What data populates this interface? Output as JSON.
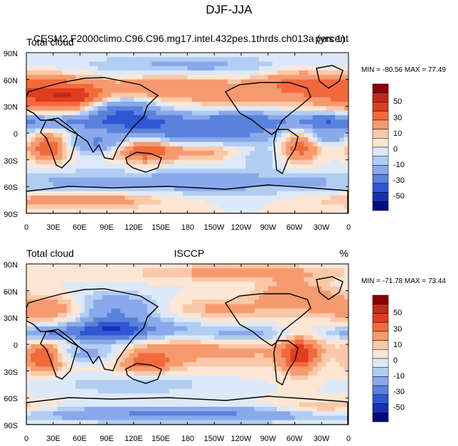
{
  "figure": {
    "title": "DJF-JJA"
  },
  "panels": [
    {
      "left_label": "Total cloud",
      "center_label": "CESM2.F2000climo.C96.C96.mg17.intel.432pes.1thrds.ch013a (yrs 1)",
      "right_label": "percent",
      "stats": {
        "min_label": "MIN = ",
        "min": "-80.56",
        "max_label": " MAX = ",
        "max": "77.49"
      }
    },
    {
      "left_label": "Total cloud",
      "center_label": "ISCCP",
      "right_label": "%",
      "stats": {
        "min_label": "MIN = ",
        "min": "-71.78",
        "max_label": " MAX = ",
        "max": "73.44"
      }
    }
  ],
  "axes": {
    "lat_ticks": [
      "90N",
      "60N",
      "30N",
      "0",
      "30S",
      "60S",
      "90S"
    ],
    "lon_ticks": [
      "0",
      "30E",
      "60E",
      "90E",
      "120E",
      "150E",
      "180",
      "150W",
      "120W",
      "90W",
      "60W",
      "30W",
      "0"
    ]
  },
  "colorbar": {
    "labels": [
      "50",
      "30",
      "10",
      "0",
      "-10",
      "-30",
      "-50"
    ],
    "colors": [
      "#8b0000",
      "#c02a1a",
      "#e03c1e",
      "#f26a3c",
      "#f59a6e",
      "#fac8a8",
      "#fde6d4",
      "#dde9f8",
      "#b2cdf2",
      "#8aa9ea",
      "#5a82dc",
      "#2f57d2",
      "#1a2fb6",
      "#000c7e"
    ]
  },
  "chart_data": [
    {
      "type": "heatmap",
      "title": "DJF-JJA",
      "subtitle": "CESM2.F2000climo.C96.C96.mg17.intel.432pes.1thrds.ch013a (yrs 1)",
      "variable": "Total cloud",
      "units": "percent",
      "xlabel": "",
      "ylabel": "",
      "x_range": [
        0,
        360
      ],
      "y_range": [
        -90,
        90
      ],
      "stats": {
        "min": -80.56,
        "max": 77.49
      },
      "features": [
        {
          "lon": 20,
          "lat": 45,
          "amp": 30,
          "sx": 45,
          "sy": 14
        },
        {
          "lon": 60,
          "lat": 38,
          "amp": 22,
          "sx": 28,
          "sy": 10
        },
        {
          "lon": 155,
          "lat": 50,
          "amp": 20,
          "sx": 40,
          "sy": 10
        },
        {
          "lon": 230,
          "lat": 45,
          "amp": 15,
          "sx": 30,
          "sy": 10
        },
        {
          "lon": 300,
          "lat": 55,
          "amp": 20,
          "sx": 30,
          "sy": 12
        },
        {
          "lon": 100,
          "lat": 28,
          "amp": -30,
          "sx": 30,
          "sy": 10
        },
        {
          "lon": 40,
          "lat": 12,
          "amp": -18,
          "sx": 40,
          "sy": 6
        },
        {
          "lon": 130,
          "lat": 10,
          "amp": -25,
          "sx": 40,
          "sy": 9
        },
        {
          "lon": 245,
          "lat": 12,
          "amp": -28,
          "sx": 55,
          "sy": 8
        },
        {
          "lon": 335,
          "lat": 12,
          "amp": -20,
          "sx": 25,
          "sy": 8
        },
        {
          "lon": 25,
          "lat": -15,
          "amp": 32,
          "sx": 16,
          "sy": 11
        },
        {
          "lon": 130,
          "lat": -18,
          "amp": 30,
          "sx": 22,
          "sy": 10
        },
        {
          "lon": 305,
          "lat": -12,
          "amp": 30,
          "sx": 15,
          "sy": 14
        },
        {
          "lon": 200,
          "lat": -20,
          "amp": 14,
          "sx": 40,
          "sy": 8
        },
        {
          "lon": 80,
          "lat": -12,
          "amp": -20,
          "sx": 30,
          "sy": 8
        },
        {
          "lon": 200,
          "lat": -5,
          "amp": -22,
          "sx": 60,
          "sy": 7
        },
        {
          "lon": 330,
          "lat": -5,
          "amp": -14,
          "sx": 25,
          "sy": 6
        },
        {
          "lon": 260,
          "lat": -25,
          "amp": -12,
          "sx": 25,
          "sy": 8
        },
        {
          "lon": 180,
          "lat": -55,
          "amp": -14,
          "sx": 200,
          "sy": 10
        },
        {
          "lon": 60,
          "lat": -75,
          "amp": 20,
          "sx": 60,
          "sy": 6
        },
        {
          "lon": 180,
          "lat": 75,
          "amp": -12,
          "sx": 100,
          "sy": 8
        }
      ]
    },
    {
      "type": "heatmap",
      "title": "ISCCP",
      "variable": "Total cloud",
      "units": "%",
      "xlabel": "",
      "ylabel": "",
      "x_range": [
        0,
        360
      ],
      "y_range": [
        -90,
        90
      ],
      "stats": {
        "min": -71.78,
        "max": 73.44
      },
      "features": [
        {
          "lon": 30,
          "lat": 40,
          "amp": 22,
          "sx": 40,
          "sy": 10
        },
        {
          "lon": 300,
          "lat": 55,
          "amp": 18,
          "sx": 30,
          "sy": 12
        },
        {
          "lon": 220,
          "lat": 40,
          "amp": 12,
          "sx": 40,
          "sy": 8
        },
        {
          "lon": 240,
          "lat": 80,
          "amp": 14,
          "sx": 80,
          "sy": 6
        },
        {
          "lon": 90,
          "lat": 40,
          "amp": -25,
          "sx": 35,
          "sy": 12
        },
        {
          "lon": 95,
          "lat": 15,
          "amp": -32,
          "sx": 30,
          "sy": 9
        },
        {
          "lon": 30,
          "lat": 12,
          "amp": -22,
          "sx": 35,
          "sy": 6
        },
        {
          "lon": 150,
          "lat": 15,
          "amp": -14,
          "sx": 50,
          "sy": 9
        },
        {
          "lon": 250,
          "lat": 10,
          "amp": -16,
          "sx": 40,
          "sy": 7
        },
        {
          "lon": 20,
          "lat": -15,
          "amp": 30,
          "sx": 14,
          "sy": 11
        },
        {
          "lon": 135,
          "lat": -20,
          "amp": 24,
          "sx": 20,
          "sy": 9
        },
        {
          "lon": 305,
          "lat": -12,
          "amp": 32,
          "sx": 14,
          "sy": 14
        },
        {
          "lon": 180,
          "lat": -5,
          "amp": 14,
          "sx": 120,
          "sy": 14
        },
        {
          "lon": 70,
          "lat": -10,
          "amp": -20,
          "sx": 35,
          "sy": 8
        },
        {
          "lon": 120,
          "lat": -45,
          "amp": -10,
          "sx": 60,
          "sy": 8
        },
        {
          "lon": 180,
          "lat": -78,
          "amp": -22,
          "sx": 150,
          "sy": 6
        },
        {
          "lon": 330,
          "lat": -72,
          "amp": 14,
          "sx": 40,
          "sy": 6
        }
      ]
    }
  ]
}
